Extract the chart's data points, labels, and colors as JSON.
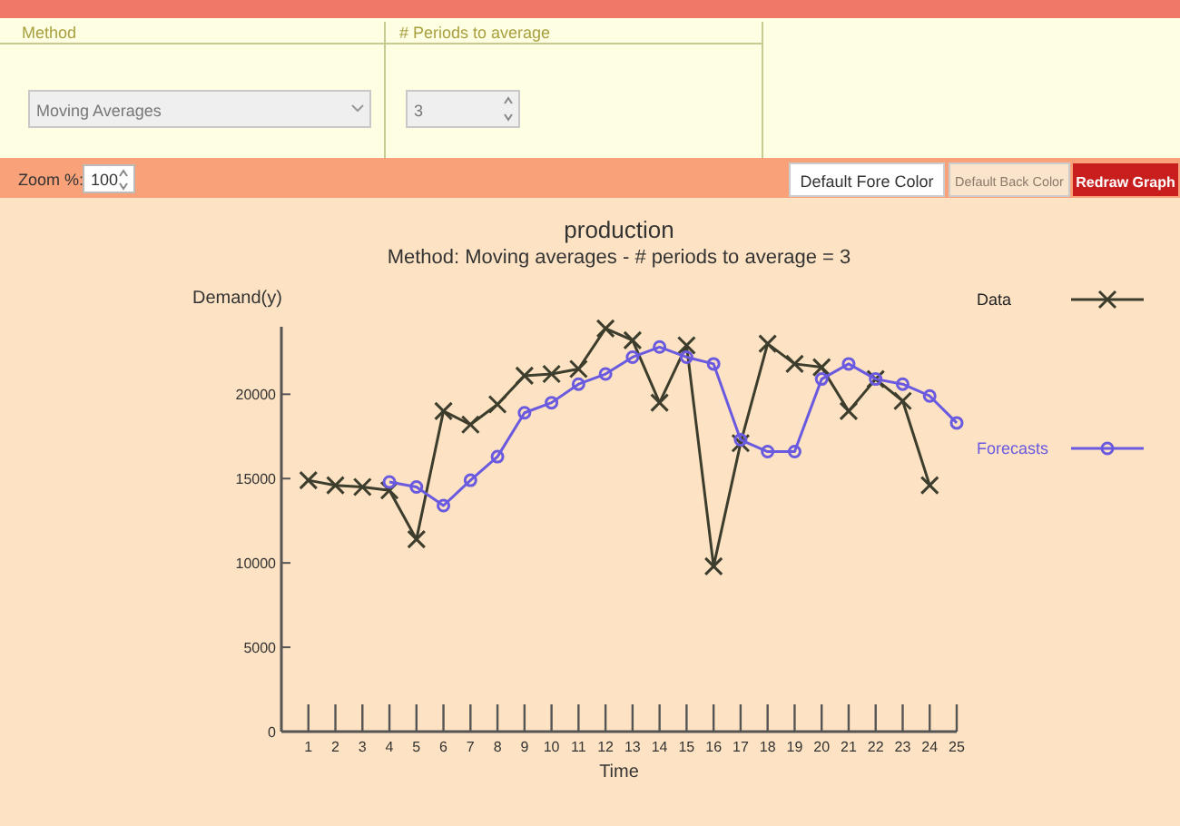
{
  "chart_data": {
    "type": "line",
    "title": "production",
    "subtitle": "Method: Moving averages - # periods to average = 3",
    "xlabel": "Time",
    "ylabel": "Demand(y)",
    "x": [
      1,
      2,
      3,
      4,
      5,
      6,
      7,
      8,
      9,
      10,
      11,
      12,
      13,
      14,
      15,
      16,
      17,
      18,
      19,
      20,
      21,
      22,
      23,
      24
    ],
    "series": [
      {
        "name": "Data",
        "color": "#3d3d2e",
        "marker": "cross",
        "values": [
          14900,
          14600,
          14500,
          14300,
          11400,
          19000,
          18200,
          19400,
          21100,
          21200,
          21500,
          23900,
          23200,
          19500,
          22900,
          9800,
          17100,
          23000,
          21800,
          21600,
          19000,
          20900,
          19600,
          14600
        ]
      },
      {
        "name": "Forecasts",
        "color": "#6a5ae0",
        "marker": "circle",
        "x": [
          4,
          5,
          6,
          7,
          8,
          9,
          10,
          11,
          12,
          13,
          14,
          15,
          16,
          17,
          18,
          19,
          20,
          21,
          22,
          23,
          24,
          25
        ],
        "values": [
          14800,
          14500,
          13400,
          14900,
          16300,
          18900,
          19500,
          20600,
          21200,
          22200,
          22800,
          22200,
          21800,
          17300,
          16600,
          16600,
          20900,
          21800,
          20900,
          20600,
          19900,
          18300
        ]
      }
    ],
    "xlim": [
      0,
      25
    ],
    "xticks": [
      1,
      2,
      3,
      4,
      5,
      6,
      7,
      8,
      9,
      10,
      11,
      12,
      13,
      14,
      15,
      16,
      17,
      18,
      19,
      20,
      21,
      22,
      23,
      24,
      25
    ],
    "ylim": [
      0,
      24000
    ],
    "yticks": [
      0,
      5000,
      10000,
      15000,
      20000
    ],
    "grid": false,
    "legend": "right",
    "annotations": [
      "Method",
      "Moving Averages",
      "# Periods to average",
      "3",
      "Zoom %:",
      "100",
      "Default Fore Color",
      "Default Back Color",
      "Redraw Graph"
    ]
  }
}
